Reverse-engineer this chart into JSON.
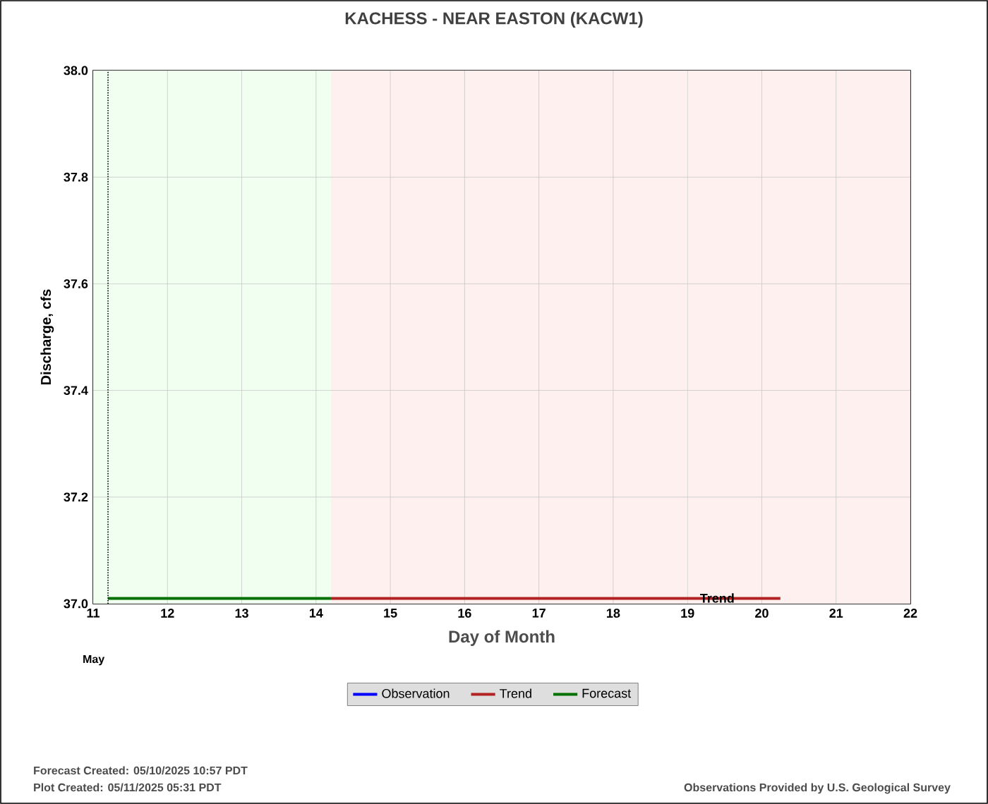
{
  "chart_data": {
    "type": "line",
    "title": "KACHESS - NEAR EASTON  (KACW1)",
    "xlabel": "Day of Month",
    "ylabel": "Discharge, cfs",
    "xlim": [
      11,
      22
    ],
    "xticks": [
      11,
      12,
      13,
      14,
      15,
      16,
      17,
      18,
      19,
      20,
      21,
      22
    ],
    "ylim": [
      37.0,
      38.0
    ],
    "yticks": [
      {
        "value": 37.0,
        "label": "37.0"
      },
      {
        "value": 37.2,
        "label": "37.2"
      },
      {
        "value": 37.4,
        "label": "37.4"
      },
      {
        "value": 37.6,
        "label": "37.6"
      },
      {
        "value": 37.8,
        "label": "37.8"
      },
      {
        "value": 38.0,
        "label": "38.0"
      }
    ],
    "grid": true,
    "legend": "bottom",
    "marker": "none",
    "line_style": "solid",
    "series": [
      {
        "name": "Observation",
        "color": "#0000ff"
      },
      {
        "name": "Trend",
        "color": "#b22222",
        "x": [
          14.2,
          20.25
        ],
        "values": [
          37.01,
          37.01
        ]
      },
      {
        "name": "Forecast",
        "color": "#007000",
        "x": [
          11.2,
          14.2
        ],
        "values": [
          37.01,
          37.01
        ]
      }
    ],
    "bands": [
      {
        "axis": "x",
        "from": 11,
        "to": 14.2,
        "color": "#f0fff0"
      },
      {
        "axis": "x",
        "from": 14.2,
        "to": 22,
        "color": "#fff0f0"
      }
    ],
    "ref_lines": [
      {
        "axis": "x",
        "value": 11.2,
        "color": "#000000",
        "line_style": "dotted"
      }
    ],
    "annotations": [
      {
        "text": "Trend",
        "x": 19.4,
        "y": 37.0
      },
      "May",
      "Forecast Created: 05/10/2025 10:57 PDT",
      "Plot Created: 05/11/2025 05:31 PDT",
      "Observations Provided by U.S. Geological Survey"
    ]
  }
}
